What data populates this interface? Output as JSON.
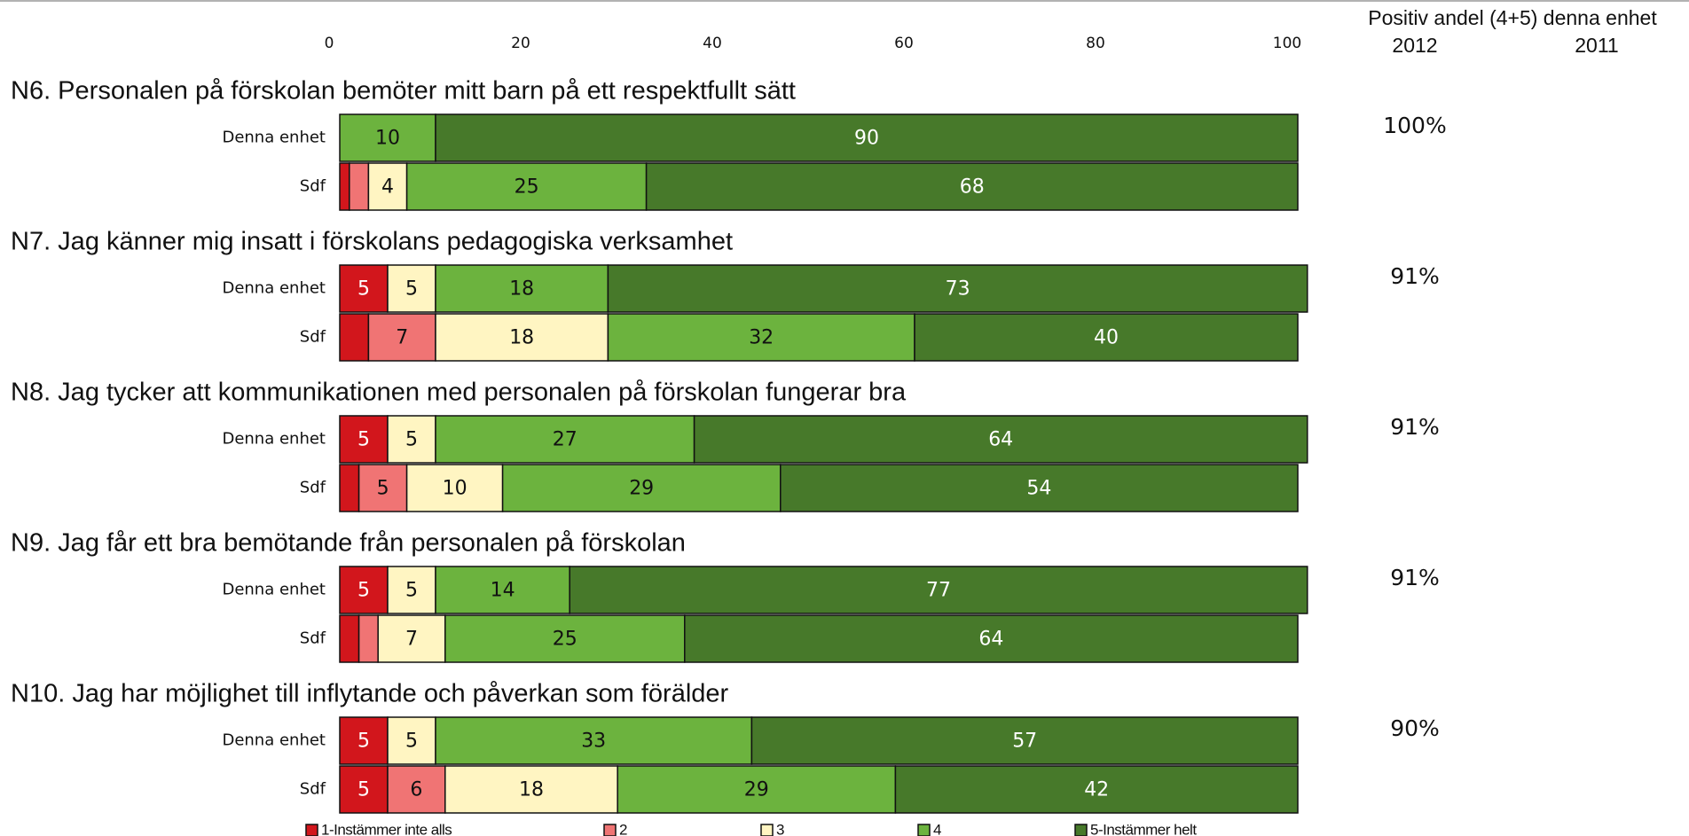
{
  "chart_data": {
    "type": "stacked-bar-horizontal",
    "xlim": [
      0,
      100
    ],
    "xticks": [
      0,
      20,
      40,
      60,
      80,
      100
    ],
    "groups": [
      {
        "title": "N6. Personalen på förskolan bemöter mitt barn på ett respektfullt sätt"
      },
      {
        "title": "N7. Jag känner mig insatt i förskolans pedagogiska verksamhet"
      },
      {
        "title": "N8. Jag tycker att kommunikationen med personalen på förskolan fungerar bra"
      },
      {
        "title": "N9. Jag får ett bra bemötande från personalen på förskolan"
      },
      {
        "title": "N10. Jag har möjlighet till inflytande och påverkan som förälder"
      }
    ],
    "categories": [
      "Denna enhet",
      "Sdf",
      "Denna enhet",
      "Sdf",
      "Denna enhet",
      "Sdf",
      "Denna enhet",
      "Sdf",
      "Denna enhet",
      "Sdf"
    ],
    "series": [
      {
        "name": "1-Instämmer inte alls",
        "color": "#d2161c",
        "values": [
          0,
          1,
          5,
          3,
          5,
          2,
          5,
          2,
          5,
          5
        ]
      },
      {
        "name": "2",
        "color": "#f07474",
        "values": [
          0,
          2,
          0,
          7,
          0,
          5,
          0,
          2,
          0,
          6
        ]
      },
      {
        "name": "3",
        "color": "#fff5c2",
        "values": [
          0,
          4,
          5,
          18,
          5,
          10,
          5,
          7,
          5,
          18
        ]
      },
      {
        "name": "4",
        "color": "#6cb33e",
        "values": [
          10,
          25,
          18,
          32,
          27,
          29,
          14,
          25,
          33,
          29
        ]
      },
      {
        "name": "5-Instämmer helt",
        "color": "#47792a",
        "values": [
          90,
          68,
          73,
          40,
          64,
          54,
          77,
          64,
          57,
          42
        ]
      }
    ],
    "side_table": {
      "title": "Positiv andel (4+5) denna enhet",
      "columns": [
        "2012",
        "2011"
      ],
      "values": [
        100,
        91,
        91,
        91,
        90
      ],
      "value_labels": [
        "100%",
        "91%",
        "91%",
        "91%",
        "90%"
      ]
    }
  }
}
